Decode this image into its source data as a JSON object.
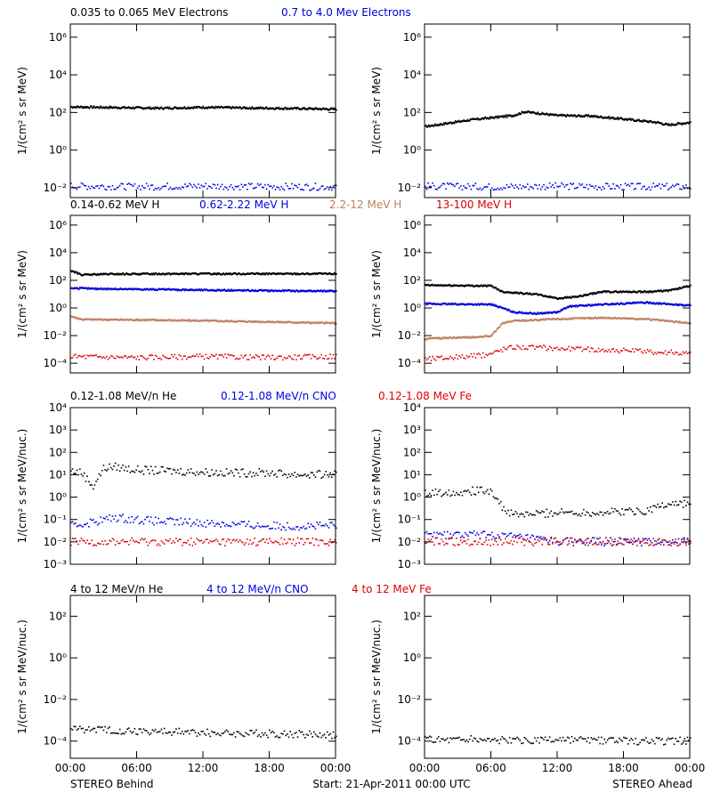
{
  "footer": {
    "left": "STEREO Behind",
    "center": "Start: 21-Apr-2011 00:00 UTC",
    "right": "STEREO Ahead"
  },
  "colors": {
    "black": "#000000",
    "blue": "#0000dd",
    "tan": "#c08060",
    "red": "#dd0000"
  },
  "chart_data": [
    {
      "id": "electrons",
      "type": "scatter",
      "ylabel": "1/(cm² s sr MeV)",
      "ylog": true,
      "ylim": [
        0.003,
        5000000
      ],
      "yticks": [
        0.01,
        1,
        100,
        10000,
        1000000
      ],
      "xlim": [
        0,
        24
      ],
      "xticks": [
        "00:00",
        "06:00",
        "12:00",
        "18:00",
        "00:00"
      ],
      "labels": [
        {
          "text": "0.035 to 0.065 MeV Electrons",
          "color": "#000000"
        },
        {
          "text": "0.7 to 4.0 Mev Electrons",
          "color": "#0000dd"
        }
      ],
      "panels": [
        {
          "spacecraft": "STEREO Behind",
          "series": [
            {
              "color": "#000000",
              "style": "line",
              "points": [
                [
                  0,
                  200
                ],
                [
                  4,
                  185
                ],
                [
                  8,
                  170
                ],
                [
                  12,
                  190
                ],
                [
                  16,
                  175
                ],
                [
                  20,
                  165
                ],
                [
                  24,
                  150
                ]
              ]
            },
            {
              "color": "#0000dd",
              "style": "dots",
              "points": [
                [
                  0,
                  0.012
                ],
                [
                  6,
                  0.011
                ],
                [
                  12,
                  0.012
                ],
                [
                  18,
                  0.011
                ],
                [
                  24,
                  0.011
                ]
              ]
            }
          ]
        },
        {
          "spacecraft": "STEREO Ahead",
          "series": [
            {
              "color": "#000000",
              "style": "line",
              "points": [
                [
                  0,
                  18
                ],
                [
                  4,
                  40
                ],
                [
                  8,
                  70
                ],
                [
                  9,
                  110
                ],
                [
                  12,
                  70
                ],
                [
                  15,
                  65
                ],
                [
                  18,
                  45
                ],
                [
                  21,
                  30
                ],
                [
                  22,
                  22
                ],
                [
                  24,
                  30
                ]
              ]
            },
            {
              "color": "#0000dd",
              "style": "dots",
              "points": [
                [
                  0,
                  0.012
                ],
                [
                  6,
                  0.011
                ],
                [
                  12,
                  0.012
                ],
                [
                  18,
                  0.011
                ],
                [
                  24,
                  0.011
                ]
              ]
            }
          ]
        }
      ]
    },
    {
      "id": "protons",
      "type": "scatter",
      "ylabel": "1/(cm² s sr MeV)",
      "ylog": true,
      "ylim": [
        2e-05,
        5000000
      ],
      "yticks": [
        0.0001,
        0.01,
        1,
        100,
        10000,
        1000000
      ],
      "xlim": [
        0,
        24
      ],
      "xticks": [
        "00:00",
        "06:00",
        "12:00",
        "18:00",
        "00:00"
      ],
      "labels": [
        {
          "text": "0.14-0.62 MeV H",
          "color": "#000000"
        },
        {
          "text": "0.62-2.22 MeV H",
          "color": "#0000dd"
        },
        {
          "text": "2.2-12 MeV H",
          "color": "#c08060"
        },
        {
          "text": "13-100 MeV H",
          "color": "#dd0000"
        }
      ],
      "panels": [
        {
          "spacecraft": "STEREO Behind",
          "series": [
            {
              "color": "#000000",
              "style": "line",
              "points": [
                [
                  0,
                  500
                ],
                [
                  1,
                  250
                ],
                [
                  3,
                  280
                ],
                [
                  8,
                  300
                ],
                [
                  12,
                  300
                ],
                [
                  18,
                  300
                ],
                [
                  24,
                  300
                ]
              ]
            },
            {
              "color": "#0000dd",
              "style": "line",
              "points": [
                [
                  0,
                  28
                ],
                [
                  2,
                  25
                ],
                [
                  8,
                  22
                ],
                [
                  12,
                  20
                ],
                [
                  18,
                  18
                ],
                [
                  24,
                  17
                ]
              ]
            },
            {
              "color": "#c08060",
              "style": "line",
              "points": [
                [
                  0,
                  0.25
                ],
                [
                  1,
                  0.15
                ],
                [
                  6,
                  0.14
                ],
                [
                  12,
                  0.12
                ],
                [
                  18,
                  0.1
                ],
                [
                  24,
                  0.08
                ]
              ]
            },
            {
              "color": "#dd0000",
              "style": "dots",
              "points": [
                [
                  0,
                  0.0003
                ],
                [
                  6,
                  0.00025
                ],
                [
                  12,
                  0.0003
                ],
                [
                  18,
                  0.00025
                ],
                [
                  24,
                  0.0003
                ]
              ]
            }
          ]
        },
        {
          "spacecraft": "STEREO Ahead",
          "series": [
            {
              "color": "#000000",
              "style": "line",
              "points": [
                [
                  0,
                  45
                ],
                [
                  6,
                  40
                ],
                [
                  7,
                  15
                ],
                [
                  10,
                  10
                ],
                [
                  12,
                  5
                ],
                [
                  14,
                  7
                ],
                [
                  16,
                  15
                ],
                [
                  20,
                  15
                ],
                [
                  22,
                  18
                ],
                [
                  24,
                  40
                ]
              ]
            },
            {
              "color": "#0000dd",
              "style": "line",
              "points": [
                [
                  0,
                  2
                ],
                [
                  6,
                  1.8
                ],
                [
                  7,
                  1
                ],
                [
                  8,
                  0.5
                ],
                [
                  10,
                  0.4
                ],
                [
                  12,
                  0.5
                ],
                [
                  13,
                  1.3
                ],
                [
                  16,
                  1.8
                ],
                [
                  20,
                  2.5
                ],
                [
                  24,
                  1.5
                ]
              ]
            },
            {
              "color": "#c08060",
              "style": "line",
              "points": [
                [
                  0,
                  0.006
                ],
                [
                  5,
                  0.008
                ],
                [
                  6,
                  0.01
                ],
                [
                  7,
                  0.08
                ],
                [
                  8,
                  0.12
                ],
                [
                  12,
                  0.16
                ],
                [
                  16,
                  0.2
                ],
                [
                  20,
                  0.16
                ],
                [
                  24,
                  0.08
                ]
              ]
            },
            {
              "color": "#dd0000",
              "style": "dots",
              "points": [
                [
                  0,
                  0.0002
                ],
                [
                  5,
                  0.00035
                ],
                [
                  6,
                  0.0005
                ],
                [
                  7,
                  0.001
                ],
                [
                  8,
                  0.0015
                ],
                [
                  12,
                  0.0012
                ],
                [
                  18,
                  0.0008
                ],
                [
                  24,
                  0.0005
                ]
              ]
            }
          ]
        }
      ]
    },
    {
      "id": "heavy-low",
      "type": "scatter",
      "ylabel": "1/(cm² s sr MeV/nuc.)",
      "ylog": true,
      "ylim": [
        0.001,
        10000
      ],
      "yticks": [
        0.001,
        0.01,
        0.1,
        1,
        10,
        100,
        1000,
        10000
      ],
      "xlim": [
        0,
        24
      ],
      "xticks": [
        "00:00",
        "06:00",
        "12:00",
        "18:00",
        "00:00"
      ],
      "labels": [
        {
          "text": "0.12-1.08 MeV/n He",
          "color": "#000000"
        },
        {
          "text": "0.12-1.08 MeV/n CNO",
          "color": "#0000dd"
        },
        {
          "text": "0.12-1.08 MeV Fe",
          "color": "#dd0000"
        }
      ],
      "panels": [
        {
          "spacecraft": "STEREO Behind",
          "series": [
            {
              "color": "#000000",
              "style": "dots",
              "points": [
                [
                  0,
                  15
                ],
                [
                  1,
                  12
                ],
                [
                  2,
                  3
                ],
                [
                  2.5,
                  8
                ],
                [
                  3,
                  20
                ],
                [
                  4,
                  22
                ],
                [
                  6,
                  16
                ],
                [
                  10,
                  14
                ],
                [
                  14,
                  12
                ],
                [
                  18,
                  12
                ],
                [
                  20,
                  10
                ],
                [
                  24,
                  10
                ]
              ]
            },
            {
              "color": "#0000dd",
              "style": "dots",
              "points": [
                [
                  0,
                  0.05
                ],
                [
                  4,
                  0.12
                ],
                [
                  8,
                  0.08
                ],
                [
                  12,
                  0.07
                ],
                [
                  18,
                  0.05
                ],
                [
                  24,
                  0.05
                ]
              ]
            },
            {
              "color": "#dd0000",
              "style": "dots",
              "points": [
                [
                  0,
                  0.01
                ],
                [
                  6,
                  0.01
                ],
                [
                  12,
                  0.01
                ],
                [
                  18,
                  0.01
                ],
                [
                  24,
                  0.01
                ]
              ]
            }
          ]
        },
        {
          "spacecraft": "STEREO Ahead",
          "series": [
            {
              "color": "#000000",
              "style": "dots",
              "points": [
                [
                  0,
                  1.5
                ],
                [
                  3,
                  1.7
                ],
                [
                  6,
                  2
                ],
                [
                  7,
                  0.3
                ],
                [
                  8,
                  0.15
                ],
                [
                  12,
                  0.2
                ],
                [
                  16,
                  0.2
                ],
                [
                  20,
                  0.25
                ],
                [
                  22,
                  0.5
                ],
                [
                  24,
                  0.5
                ]
              ]
            },
            {
              "color": "#0000dd",
              "style": "dots",
              "points": [
                [
                  0,
                  0.02
                ],
                [
                  6,
                  0.02
                ],
                [
                  12,
                  0.01
                ],
                [
                  18,
                  0.01
                ],
                [
                  24,
                  0.01
                ]
              ]
            },
            {
              "color": "#dd0000",
              "style": "dots",
              "points": [
                [
                  0,
                  0.01
                ],
                [
                  6,
                  0.01
                ],
                [
                  12,
                  0.01
                ],
                [
                  18,
                  0.01
                ],
                [
                  24,
                  0.01
                ]
              ]
            }
          ]
        }
      ]
    },
    {
      "id": "heavy-high",
      "type": "scatter",
      "ylabel": "1/(cm² s sr MeV/nuc.)",
      "ylog": true,
      "ylim": [
        1.5e-05,
        1000
      ],
      "yticks": [
        0.0001,
        0.01,
        1,
        100
      ],
      "xlim": [
        0,
        24
      ],
      "xticks": [
        "00:00",
        "06:00",
        "12:00",
        "18:00",
        "00:00"
      ],
      "labels": [
        {
          "text": "4 to 12 MeV/n He",
          "color": "#000000"
        },
        {
          "text": "4 to 12 MeV/n CNO",
          "color": "#0000dd"
        },
        {
          "text": "4 to 12 MeV Fe",
          "color": "#dd0000"
        }
      ],
      "panels": [
        {
          "spacecraft": "STEREO Behind",
          "series": [
            {
              "color": "#000000",
              "style": "dots",
              "points": [
                [
                  0,
                  0.0004
                ],
                [
                  6,
                  0.0003
                ],
                [
                  12,
                  0.00025
                ],
                [
                  18,
                  0.00022
                ],
                [
                  24,
                  0.0002
                ]
              ]
            }
          ]
        },
        {
          "spacecraft": "STEREO Ahead",
          "series": [
            {
              "color": "#000000",
              "style": "dots",
              "points": [
                [
                  5,
                  0.00012
                ],
                [
                  8,
                  0.0001
                ],
                [
                  12,
                  0.00011
                ],
                [
                  16,
                  0.0001
                ],
                [
                  20,
                  0.0001
                ],
                [
                  24,
                  0.0001
                ]
              ]
            }
          ]
        }
      ]
    }
  ]
}
